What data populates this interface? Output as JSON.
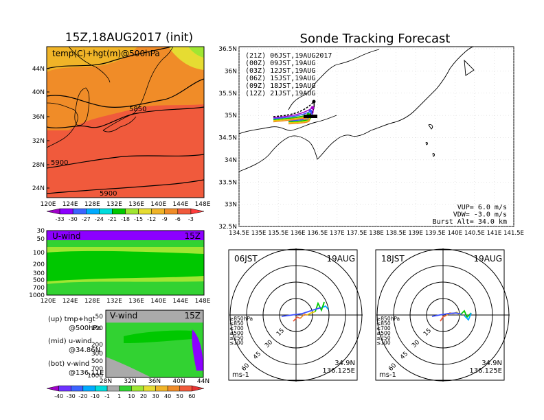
{
  "left_title": "15Z,18AUG2017 (init)",
  "right_title": "Sonde Tracking Forecast",
  "top_map": {
    "label": "temp(C)+hgt(m)@500hPa",
    "lat_ticks": [
      "44N",
      "40N",
      "36N",
      "32N",
      "28N",
      "24N"
    ],
    "lon_ticks": [
      "120E",
      "124E",
      "128E",
      "132E",
      "136E",
      "140E",
      "144E",
      "148E"
    ],
    "contour_labels": [
      "5850",
      "5900",
      "5900"
    ],
    "colorbar": [
      "-33",
      "-30",
      "-27",
      "-24",
      "-21",
      "-18",
      "-15",
      "-12",
      "-9",
      "-6",
      "-3"
    ],
    "colorbar_colors": [
      "#a000c8",
      "#8c00ff",
      "#3c64ff",
      "#00aaff",
      "#00dcdc",
      "#00c800",
      "#a0e632",
      "#e6dc32",
      "#f0b428",
      "#f08c28",
      "#f05a3c",
      "#ff3c3c"
    ]
  },
  "u_panel": {
    "label": "U-wind",
    "time": "15Z",
    "y_ticks": [
      "30",
      "50",
      "100",
      "200",
      "300",
      "500",
      "700",
      "1000"
    ],
    "x_ticks": [
      "120E",
      "124E",
      "128E",
      "132E",
      "136E",
      "140E",
      "144E",
      "148E"
    ]
  },
  "v_panel": {
    "label": "V-wind",
    "time": "15Z",
    "y_ticks": [
      "50",
      "100",
      "200",
      "300",
      "500",
      "700",
      "1000"
    ],
    "x_ticks": [
      "28N",
      "32N",
      "36N",
      "40N",
      "44N"
    ]
  },
  "wind_colorbar": [
    "-40",
    "-30",
    "-20",
    "-10",
    "-1",
    "1",
    "10",
    "20",
    "30",
    "40",
    "50",
    "60"
  ],
  "wind_colorbar_colors": [
    "#a000c8",
    "#6e32ff",
    "#3c64ff",
    "#00aaff",
    "#00dcdc",
    "#aaaaaa",
    "#32d232",
    "#a0e632",
    "#e6dc32",
    "#f0b428",
    "#f08c28",
    "#f05a3c",
    "#e63232"
  ],
  "legend_notes": [
    {
      "line1": "(up) tmp+hgt",
      "line2": "@500hPa"
    },
    {
      "line1": "(mid) u-wind",
      "line2": "@34.86N"
    },
    {
      "line1": "(bot) v-wind",
      "line2": "@136.11E"
    }
  ],
  "track_map": {
    "lat_ticks": [
      "36.5N",
      "36N",
      "35.5N",
      "35N",
      "34.5N",
      "34N",
      "33.5N",
      "33N",
      "32.5N"
    ],
    "lon_ticks": [
      "134.5E",
      "135E",
      "135.5E",
      "136E",
      "136.5E",
      "137E",
      "137.5E",
      "138E",
      "138.5E",
      "139E",
      "139.5E",
      "140E",
      "140.5E",
      "141E",
      "141.5E"
    ],
    "launches": [
      {
        "label": "(21Z)  06JST,19AUG2017",
        "color": "#000000"
      },
      {
        "label": "(00Z)  09JST,19AUG",
        "color": "#a000c8"
      },
      {
        "label": "(03Z)  12JST,19AUG",
        "color": "#3c50ff"
      },
      {
        "label": "(06Z)  15JST,19AUG",
        "color": "#00c800"
      },
      {
        "label": "(09Z)  18JST,19AUG",
        "color": "#e6c800"
      },
      {
        "label": "(12Z)  21JST,19AUG",
        "color": "#f08c28"
      }
    ],
    "params": [
      "VUP=  6.0 m/s",
      "VDW= -3.0 m/s",
      "Burst Alt= 34.0 km"
    ]
  },
  "hodographs": [
    {
      "time": "06JST",
      "date": "19AUG",
      "coord1": "34.9N",
      "coord2": "136.125E",
      "unit": "ms-1",
      "ring_labels": [
        "15",
        "30",
        "45",
        "60"
      ]
    },
    {
      "time": "18JST",
      "date": "19AUG",
      "coord1": "34.9N",
      "coord2": "136.125E",
      "unit": "ms-1",
      "ring_labels": [
        "15",
        "30",
        "45",
        "60"
      ]
    }
  ],
  "hodo_levels": [
    {
      "label": "≥850hPa",
      "color": "#f05a3c"
    },
    {
      "label": "≤850",
      "color": "#f08c28"
    },
    {
      "label": "≤700",
      "color": "#e6c800"
    },
    {
      "label": "≤500",
      "color": "#00c800"
    },
    {
      "label": "≤250",
      "color": "#00aaff"
    },
    {
      "label": "≤100",
      "color": "#3c50ff"
    }
  ]
}
